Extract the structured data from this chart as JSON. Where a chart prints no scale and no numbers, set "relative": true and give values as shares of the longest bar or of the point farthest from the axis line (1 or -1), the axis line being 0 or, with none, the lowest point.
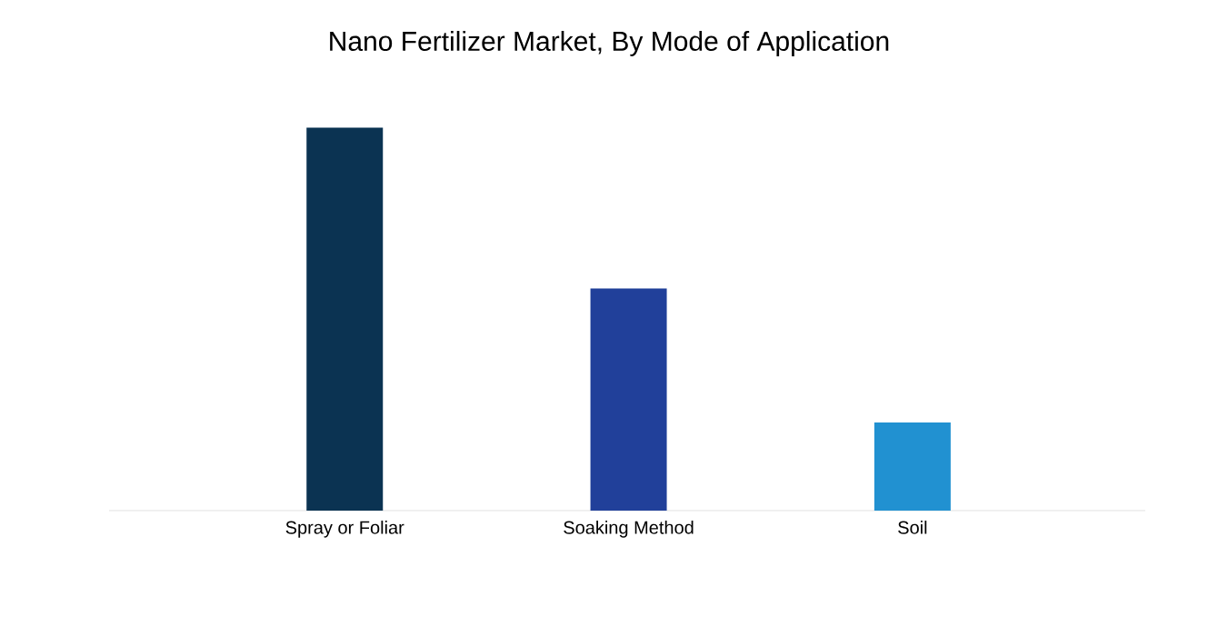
{
  "chart_data": {
    "type": "bar",
    "title": "Nano Fertilizer Market, By Mode of Application",
    "categories": [
      "Spray or Foliar",
      "Soaking Method",
      "Soil"
    ],
    "values": [
      1,
      0.58,
      0.23
    ],
    "colors": [
      "#0b3352",
      "#21409a",
      "#2191d1"
    ],
    "relative": true
  }
}
